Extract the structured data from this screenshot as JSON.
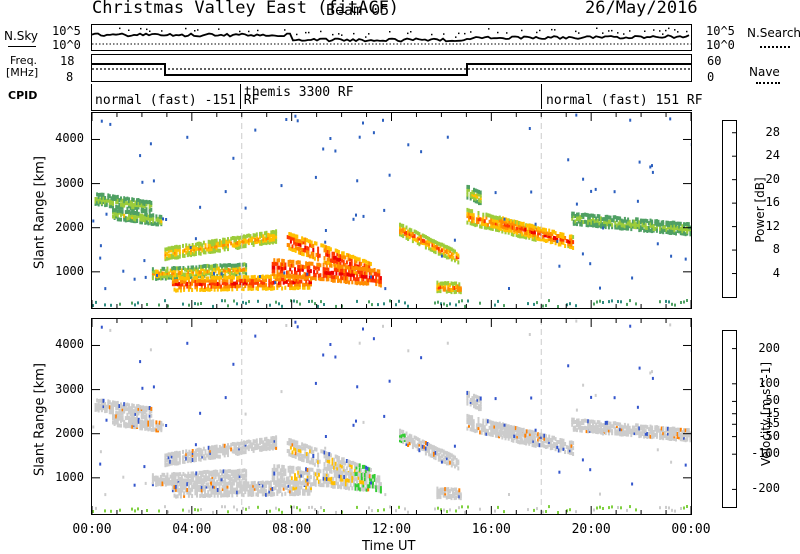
{
  "header": {
    "title": "Christmas Valley East (fitACF)",
    "beam": "Beam 05",
    "date": "26/May/2016"
  },
  "nsky": {
    "label": "N.Sky",
    "right_label": "N.Search",
    "ticks_left": [
      "10^5",
      "10^0"
    ],
    "ticks_right": [
      "10^5",
      "10^0"
    ]
  },
  "freq": {
    "label_line1": "Freq.",
    "label_line2": "[MHz]",
    "right_label": "Nave",
    "ticks_left": [
      "18",
      "8"
    ],
    "ticks_right": [
      "60",
      "0"
    ]
  },
  "cpid": {
    "label": "CPID",
    "segments": [
      {
        "label": "normal (fast) -151 RF",
        "start": 0,
        "end": 6
      },
      {
        "label": "themis 3300 RF",
        "start": 6,
        "end": 18
      },
      {
        "label": "normal (fast) 151 RF",
        "start": 18,
        "end": 24
      }
    ]
  },
  "chart_data": [
    {
      "type": "heatmap",
      "parameter": "Power",
      "ylabel": "Slant Range [km]",
      "xlabel": "Time UT",
      "x_ticks": [
        "00:00",
        "04:00",
        "08:00",
        "12:00",
        "16:00",
        "20:00",
        "00:00"
      ],
      "xlim_hours": [
        0,
        24
      ],
      "y_ticks": [
        1000,
        2000,
        3000,
        4000
      ],
      "ylim_km": [
        180,
        4600
      ],
      "colorbar": {
        "label": "Power [dB]",
        "ticks": [
          4,
          8,
          12,
          16,
          20,
          24,
          28
        ],
        "range": [
          0,
          30
        ],
        "colors": [
          "#1f24ff",
          "#2b5fbf",
          "#2f8a80",
          "#4fa063",
          "#9ccc3a",
          "#ffc000",
          "#ff8c00",
          "#ff3a00",
          "#ee0000"
        ]
      }
    },
    {
      "type": "heatmap",
      "parameter": "Velocity",
      "ylabel": "Slant Range [km]",
      "xlabel": "Time UT",
      "x_ticks": [
        "00:00",
        "04:00",
        "08:00",
        "12:00",
        "16:00",
        "20:00",
        "00:00"
      ],
      "xlim_hours": [
        0,
        24
      ],
      "y_ticks": [
        1000,
        2000,
        3000,
        4000
      ],
      "ylim_km": [
        180,
        4600
      ],
      "colorbar": {
        "label": "Velocity [m s^-1]",
        "ticks": [
          200,
          100,
          50,
          15,
          -15,
          -50,
          -100,
          -200
        ],
        "range": [
          -250,
          250
        ],
        "colors": [
          "#1f2fbf",
          "#2f7f5f",
          "#33aa33",
          "#7fd040",
          "#cccccc",
          "#ffbf00",
          "#ff7f00",
          "#ff3f00",
          "#ee0000"
        ]
      }
    }
  ]
}
